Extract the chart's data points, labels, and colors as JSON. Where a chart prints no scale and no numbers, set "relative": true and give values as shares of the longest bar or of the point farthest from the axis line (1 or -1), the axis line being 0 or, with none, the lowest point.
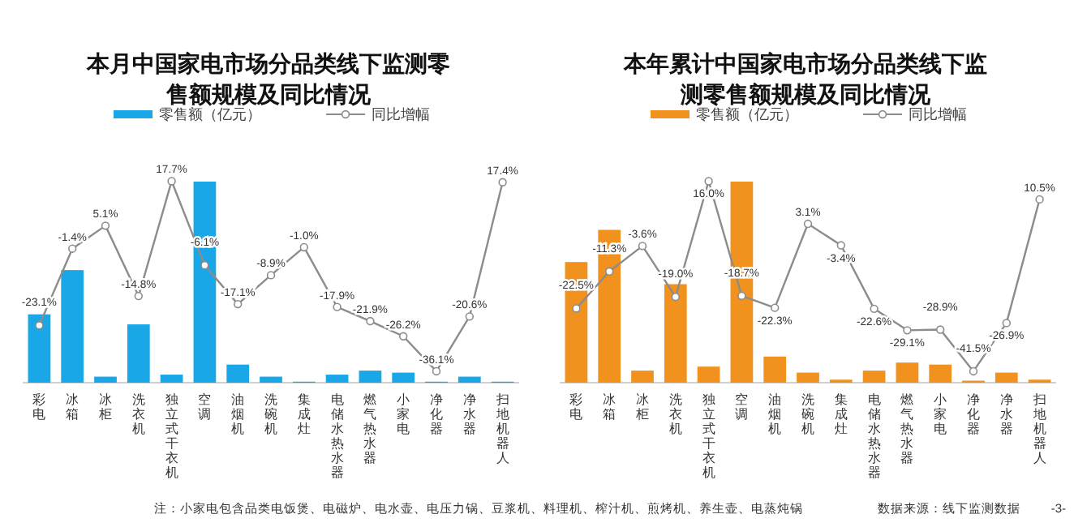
{
  "chart_data": [
    {
      "type": "bar",
      "title": "本月中国家电市场分品类线下监测零售额规模及同比情况",
      "relative": true,
      "legend": "top",
      "categories": [
        "彩电",
        "冰箱",
        "冰柜",
        "洗衣机",
        "独立式干衣机",
        "空调",
        "油烟机",
        "洗碗机",
        "集成灶",
        "电储水热水器",
        "燃气热水器",
        "小家电",
        "净化器",
        "净水器",
        "扫地机器人"
      ],
      "series": [
        {
          "name": "零售额（亿元）",
          "color": "#1aa7e8",
          "values": [
            0.34,
            0.56,
            0.03,
            0.29,
            0.04,
            1,
            0.09,
            0.03,
            0.005,
            0.04,
            0.06,
            0.05,
            0.005,
            0.03,
            0.005
          ]
        }
      ],
      "annotations": [
        "注：小家电包含品类电饭煲、电磁炉、电水壶、电压力锅、豆浆机、料理机、榨汁机、煎烤机、养生壶、电蒸炖锅"
      ]
    },
    {
      "type": "line",
      "legend": "top",
      "tick_labels": false,
      "marker": "circle",
      "categories": [
        "彩电",
        "冰箱",
        "冰柜",
        "洗衣机",
        "独立式干衣机",
        "空调",
        "油烟机",
        "洗碗机",
        "集成灶",
        "电储水热水器",
        "燃气热水器",
        "小家电",
        "净化器",
        "净水器",
        "扫地机器人"
      ],
      "series": [
        {
          "name": "同比增幅",
          "color": "#8c8c8c",
          "values": [
            -23.1,
            -1.4,
            5.1,
            -14.8,
            17.7,
            -6.1,
            -17.1,
            -8.9,
            -1.0,
            -17.9,
            -21.9,
            -26.2,
            -36.1,
            -20.6,
            17.4
          ],
          "value_labels": [
            "-23.1%",
            "-1.4%",
            "5.1%",
            "-14.8%",
            "17.7%",
            "-6.1%",
            "-17.1%",
            "-8.9%",
            "-1.0%",
            "-17.9%",
            "-21.9%",
            "-26.2%",
            "-36.1%",
            "-20.6%",
            "17.4%"
          ]
        }
      ]
    },
    {
      "type": "bar",
      "title": "本年累计中国家电市场分品类线下监测零售额规模及同比情况",
      "relative": true,
      "legend": "top",
      "categories": [
        "彩电",
        "冰箱",
        "冰柜",
        "洗衣机",
        "独立式干衣机",
        "空调",
        "油烟机",
        "洗碗机",
        "集成灶",
        "电储水热水器",
        "燃气热水器",
        "小家电",
        "净化器",
        "净水器",
        "扫地机器人"
      ],
      "series": [
        {
          "name": "零售额（亿元）",
          "color": "#f0921d",
          "values": [
            0.6,
            0.76,
            0.06,
            0.49,
            0.08,
            1,
            0.13,
            0.05,
            0.015,
            0.06,
            0.1,
            0.09,
            0.01,
            0.05,
            0.015
          ]
        }
      ],
      "annotations": [
        "数据来源：线下监测数据",
        "-3-"
      ]
    },
    {
      "type": "line",
      "legend": "top",
      "tick_labels": false,
      "marker": "circle",
      "categories": [
        "彩电",
        "冰箱",
        "冰柜",
        "洗衣机",
        "独立式干衣机",
        "空调",
        "油烟机",
        "洗碗机",
        "集成灶",
        "电储水热水器",
        "燃气热水器",
        "小家电",
        "净化器",
        "净水器",
        "扫地机器人"
      ],
      "series": [
        {
          "name": "同比增幅",
          "color": "#8c8c8c",
          "values": [
            -22.5,
            -11.3,
            -3.6,
            -19.0,
            16.0,
            -18.7,
            -22.3,
            3.1,
            -3.4,
            -22.6,
            -29.1,
            -28.9,
            -41.5,
            -26.9,
            10.5
          ],
          "value_labels": [
            "-22.5%",
            "-11.3%",
            "-3.6%",
            "-19.0%",
            "16.0%",
            "-18.7%",
            "-22.3%",
            "3.1%",
            "-3.4%",
            "-22.6%",
            "-29.1%",
            "-28.9%",
            "-41.5%",
            "-26.9%",
            "10.5%"
          ]
        }
      ]
    }
  ]
}
